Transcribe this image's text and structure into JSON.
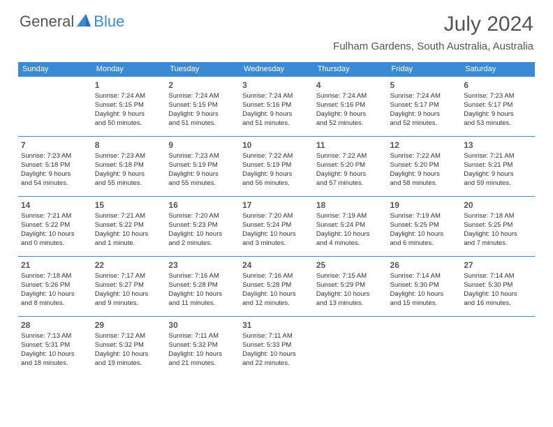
{
  "brand": {
    "part1": "General",
    "part2": "Blue"
  },
  "title": "July 2024",
  "location": "Fulham Gardens, South Australia, Australia",
  "colors": {
    "accent": "#3b8bd4",
    "text": "#333333",
    "heading": "#555555",
    "background": "#ffffff"
  },
  "weekdays": [
    "Sunday",
    "Monday",
    "Tuesday",
    "Wednesday",
    "Thursday",
    "Friday",
    "Saturday"
  ],
  "weeks": [
    [
      {
        "n": "",
        "sr": "",
        "ss": "",
        "d1": "",
        "d2": ""
      },
      {
        "n": "1",
        "sr": "Sunrise: 7:24 AM",
        "ss": "Sunset: 5:15 PM",
        "d1": "Daylight: 9 hours",
        "d2": "and 50 minutes."
      },
      {
        "n": "2",
        "sr": "Sunrise: 7:24 AM",
        "ss": "Sunset: 5:15 PM",
        "d1": "Daylight: 9 hours",
        "d2": "and 51 minutes."
      },
      {
        "n": "3",
        "sr": "Sunrise: 7:24 AM",
        "ss": "Sunset: 5:16 PM",
        "d1": "Daylight: 9 hours",
        "d2": "and 51 minutes."
      },
      {
        "n": "4",
        "sr": "Sunrise: 7:24 AM",
        "ss": "Sunset: 5:16 PM",
        "d1": "Daylight: 9 hours",
        "d2": "and 52 minutes."
      },
      {
        "n": "5",
        "sr": "Sunrise: 7:24 AM",
        "ss": "Sunset: 5:17 PM",
        "d1": "Daylight: 9 hours",
        "d2": "and 52 minutes."
      },
      {
        "n": "6",
        "sr": "Sunrise: 7:23 AM",
        "ss": "Sunset: 5:17 PM",
        "d1": "Daylight: 9 hours",
        "d2": "and 53 minutes."
      }
    ],
    [
      {
        "n": "7",
        "sr": "Sunrise: 7:23 AM",
        "ss": "Sunset: 5:18 PM",
        "d1": "Daylight: 9 hours",
        "d2": "and 54 minutes."
      },
      {
        "n": "8",
        "sr": "Sunrise: 7:23 AM",
        "ss": "Sunset: 5:18 PM",
        "d1": "Daylight: 9 hours",
        "d2": "and 55 minutes."
      },
      {
        "n": "9",
        "sr": "Sunrise: 7:23 AM",
        "ss": "Sunset: 5:19 PM",
        "d1": "Daylight: 9 hours",
        "d2": "and 55 minutes."
      },
      {
        "n": "10",
        "sr": "Sunrise: 7:22 AM",
        "ss": "Sunset: 5:19 PM",
        "d1": "Daylight: 9 hours",
        "d2": "and 56 minutes."
      },
      {
        "n": "11",
        "sr": "Sunrise: 7:22 AM",
        "ss": "Sunset: 5:20 PM",
        "d1": "Daylight: 9 hours",
        "d2": "and 57 minutes."
      },
      {
        "n": "12",
        "sr": "Sunrise: 7:22 AM",
        "ss": "Sunset: 5:20 PM",
        "d1": "Daylight: 9 hours",
        "d2": "and 58 minutes."
      },
      {
        "n": "13",
        "sr": "Sunrise: 7:21 AM",
        "ss": "Sunset: 5:21 PM",
        "d1": "Daylight: 9 hours",
        "d2": "and 59 minutes."
      }
    ],
    [
      {
        "n": "14",
        "sr": "Sunrise: 7:21 AM",
        "ss": "Sunset: 5:22 PM",
        "d1": "Daylight: 10 hours",
        "d2": "and 0 minutes."
      },
      {
        "n": "15",
        "sr": "Sunrise: 7:21 AM",
        "ss": "Sunset: 5:22 PM",
        "d1": "Daylight: 10 hours",
        "d2": "and 1 minute."
      },
      {
        "n": "16",
        "sr": "Sunrise: 7:20 AM",
        "ss": "Sunset: 5:23 PM",
        "d1": "Daylight: 10 hours",
        "d2": "and 2 minutes."
      },
      {
        "n": "17",
        "sr": "Sunrise: 7:20 AM",
        "ss": "Sunset: 5:24 PM",
        "d1": "Daylight: 10 hours",
        "d2": "and 3 minutes."
      },
      {
        "n": "18",
        "sr": "Sunrise: 7:19 AM",
        "ss": "Sunset: 5:24 PM",
        "d1": "Daylight: 10 hours",
        "d2": "and 4 minutes."
      },
      {
        "n": "19",
        "sr": "Sunrise: 7:19 AM",
        "ss": "Sunset: 5:25 PM",
        "d1": "Daylight: 10 hours",
        "d2": "and 6 minutes."
      },
      {
        "n": "20",
        "sr": "Sunrise: 7:18 AM",
        "ss": "Sunset: 5:25 PM",
        "d1": "Daylight: 10 hours",
        "d2": "and 7 minutes."
      }
    ],
    [
      {
        "n": "21",
        "sr": "Sunrise: 7:18 AM",
        "ss": "Sunset: 5:26 PM",
        "d1": "Daylight: 10 hours",
        "d2": "and 8 minutes."
      },
      {
        "n": "22",
        "sr": "Sunrise: 7:17 AM",
        "ss": "Sunset: 5:27 PM",
        "d1": "Daylight: 10 hours",
        "d2": "and 9 minutes."
      },
      {
        "n": "23",
        "sr": "Sunrise: 7:16 AM",
        "ss": "Sunset: 5:28 PM",
        "d1": "Daylight: 10 hours",
        "d2": "and 11 minutes."
      },
      {
        "n": "24",
        "sr": "Sunrise: 7:16 AM",
        "ss": "Sunset: 5:28 PM",
        "d1": "Daylight: 10 hours",
        "d2": "and 12 minutes."
      },
      {
        "n": "25",
        "sr": "Sunrise: 7:15 AM",
        "ss": "Sunset: 5:29 PM",
        "d1": "Daylight: 10 hours",
        "d2": "and 13 minutes."
      },
      {
        "n": "26",
        "sr": "Sunrise: 7:14 AM",
        "ss": "Sunset: 5:30 PM",
        "d1": "Daylight: 10 hours",
        "d2": "and 15 minutes."
      },
      {
        "n": "27",
        "sr": "Sunrise: 7:14 AM",
        "ss": "Sunset: 5:30 PM",
        "d1": "Daylight: 10 hours",
        "d2": "and 16 minutes."
      }
    ],
    [
      {
        "n": "28",
        "sr": "Sunrise: 7:13 AM",
        "ss": "Sunset: 5:31 PM",
        "d1": "Daylight: 10 hours",
        "d2": "and 18 minutes."
      },
      {
        "n": "29",
        "sr": "Sunrise: 7:12 AM",
        "ss": "Sunset: 5:32 PM",
        "d1": "Daylight: 10 hours",
        "d2": "and 19 minutes."
      },
      {
        "n": "30",
        "sr": "Sunrise: 7:11 AM",
        "ss": "Sunset: 5:32 PM",
        "d1": "Daylight: 10 hours",
        "d2": "and 21 minutes."
      },
      {
        "n": "31",
        "sr": "Sunrise: 7:11 AM",
        "ss": "Sunset: 5:33 PM",
        "d1": "Daylight: 10 hours",
        "d2": "and 22 minutes."
      },
      {
        "n": "",
        "sr": "",
        "ss": "",
        "d1": "",
        "d2": ""
      },
      {
        "n": "",
        "sr": "",
        "ss": "",
        "d1": "",
        "d2": ""
      },
      {
        "n": "",
        "sr": "",
        "ss": "",
        "d1": "",
        "d2": ""
      }
    ]
  ]
}
